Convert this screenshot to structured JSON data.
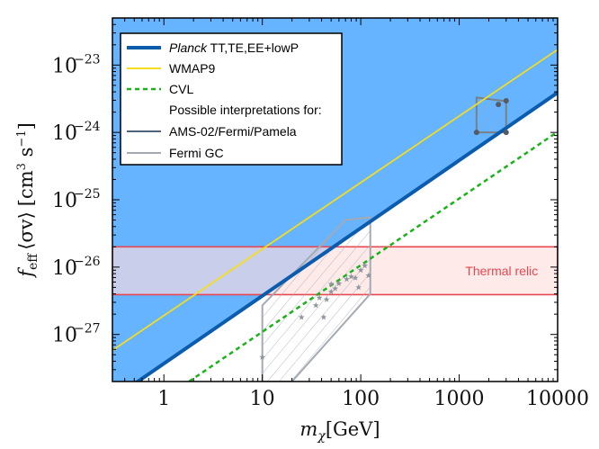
{
  "chart_data": {
    "type": "line",
    "xscale": "log",
    "yscale": "log",
    "xlim": [
      0.3,
      10000
    ],
    "ylim": [
      2e-28,
      5e-23
    ],
    "xlabel": {
      "main": "m",
      "sub": "χ",
      "unit": "[GeV]"
    },
    "ylabel": {
      "main": "f",
      "sub": "eff",
      "sigma": "⟨σv⟩",
      "unit": "[cm",
      "unit_sup1": "3",
      "unit_mid": " s",
      "unit_sup2": "−1",
      "unit_end": "]"
    },
    "xticks": [
      {
        "value": 1,
        "label": "1"
      },
      {
        "value": 10,
        "label": "10"
      },
      {
        "value": 100,
        "label": "100"
      },
      {
        "value": 1000,
        "label": "1000"
      },
      {
        "value": 10000,
        "label": "10000"
      }
    ],
    "yticks": [
      {
        "value": 1e-27,
        "base": "10",
        "exp": "−27"
      },
      {
        "value": 1e-26,
        "base": "10",
        "exp": "−26"
      },
      {
        "value": 1e-25,
        "base": "10",
        "exp": "−25"
      },
      {
        "value": 1e-24,
        "base": "10",
        "exp": "−24"
      },
      {
        "value": 1e-23,
        "base": "10",
        "exp": "−23"
      }
    ],
    "series": [
      {
        "name": "Planck TT,TE,EE+lowP",
        "name_italic": "Planck",
        "name_rest": " TT,TE,EE+lowP",
        "color": "#0b5cad",
        "style": "solid",
        "fill_above": "#66b3ff",
        "points": [
          [
            0.3,
            1.1e-28
          ],
          [
            10000,
            3.9e-24
          ]
        ]
      },
      {
        "name": "WMAP9",
        "color": "#f5dd1c",
        "style": "solid",
        "points": [
          [
            0.3,
            5.8e-28
          ],
          [
            10000,
            1.7e-23
          ]
        ]
      },
      {
        "name": "CVL",
        "color": "#19b319",
        "style": "dashed",
        "points": [
          [
            1.8,
            2e-28
          ],
          [
            10000,
            1.02e-24
          ]
        ]
      }
    ],
    "band": {
      "label": "Thermal relic",
      "y_min": 3.9e-27,
      "y_max": 2e-26,
      "fill": "#ffdede",
      "stroke": "#e8474f"
    },
    "legend": {
      "position": "top-left",
      "header": "Possible interpretations for:",
      "entries": [
        {
          "label": "AMS-02/Fermi/Pamela",
          "color": "#51637a"
        },
        {
          "label": "Fermi GC",
          "color": "#a4aab3"
        }
      ]
    },
    "regions": [
      {
        "name": "AMS-02/Fermi/Pamela",
        "color": "#7a8088",
        "polygon": [
          [
            1500,
            1e-24
          ],
          [
            3000,
            1e-24
          ],
          [
            3000,
            2.9e-24
          ],
          [
            1500,
            3.3e-24
          ]
        ],
        "points": [
          [
            1500,
            1e-24
          ],
          [
            2500,
            2.6e-24
          ],
          [
            3000,
            2.95e-24
          ],
          [
            3000,
            1e-24
          ]
        ]
      },
      {
        "name": "Fermi GC",
        "color": "#a4aab3",
        "polygon": [
          [
            10,
            2.7e-27
          ],
          [
            10,
            2e-28
          ],
          [
            20,
            2e-28
          ],
          [
            125,
            4e-27
          ],
          [
            125,
            5.5e-26
          ],
          [
            70,
            5e-26
          ]
        ],
        "stars": [
          [
            10,
            4.6e-28
          ],
          [
            25,
            1.8e-27
          ],
          [
            35,
            2.7e-27
          ],
          [
            38,
            3.5e-27
          ],
          [
            42,
            1.8e-27
          ],
          [
            45,
            3.3e-27
          ],
          [
            50,
            4.3e-27
          ],
          [
            50,
            5.6e-27
          ],
          [
            55,
            4.8e-27
          ],
          [
            60,
            5.7e-27
          ],
          [
            72,
            6.6e-27
          ],
          [
            80,
            7.2e-27
          ],
          [
            88,
            6.9e-27
          ],
          [
            95,
            5e-27
          ],
          [
            100,
            9e-27
          ],
          [
            110,
            1.05e-26
          ],
          [
            120,
            7.5e-27
          ]
        ]
      }
    ]
  }
}
